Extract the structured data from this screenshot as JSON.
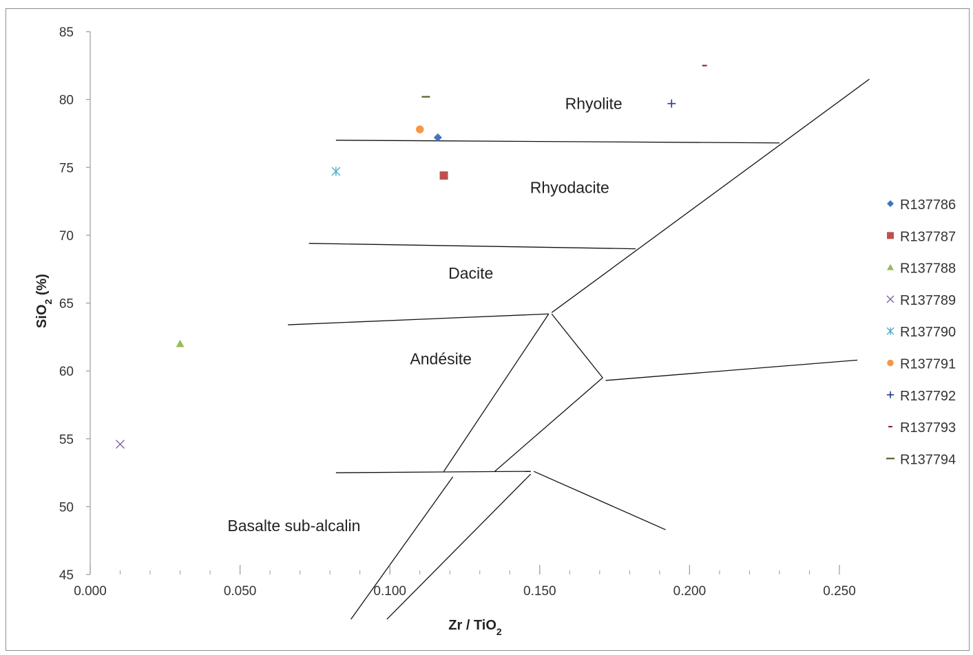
{
  "chart_data": {
    "type": "scatter",
    "xlabel": "Zr / TiO2",
    "ylabel": "SiO2 (%)",
    "xlim": [
      0.0,
      0.25
    ],
    "ylim": [
      45,
      85
    ],
    "x_ticks": [
      "0.000",
      "0.050",
      "0.100",
      "0.150",
      "0.200",
      "0.250"
    ],
    "y_ticks": [
      "45",
      "50",
      "55",
      "60",
      "65",
      "70",
      "75",
      "80",
      "85"
    ],
    "legend_position": "right",
    "series": [
      {
        "name": "R137786",
        "marker": "diamond",
        "color": "#4472c4",
        "x": 0.116,
        "y": 77.2
      },
      {
        "name": "R137787",
        "marker": "square",
        "color": "#c0504d",
        "x": 0.118,
        "y": 74.4
      },
      {
        "name": "R137788",
        "marker": "triangle",
        "color": "#9bbb59",
        "x": 0.03,
        "y": 62.0
      },
      {
        "name": "R137789",
        "marker": "x",
        "color": "#8064a2",
        "x": 0.01,
        "y": 54.6
      },
      {
        "name": "R137790",
        "marker": "star",
        "color": "#4bacc6",
        "x": 0.082,
        "y": 74.7
      },
      {
        "name": "R137791",
        "marker": "circle",
        "color": "#f79646",
        "x": 0.11,
        "y": 77.8
      },
      {
        "name": "R137792",
        "marker": "plus",
        "color": "#1f3c88",
        "x": 0.194,
        "y": 79.7
      },
      {
        "name": "R137793",
        "marker": "dash",
        "color": "#8b2f2f",
        "x": 0.205,
        "y": 82.5
      },
      {
        "name": "R137794",
        "marker": "dash",
        "color": "#4f6228",
        "x": 0.112,
        "y": 80.2
      }
    ],
    "region_labels": [
      {
        "text": "Rhyolite",
        "x": 0.168,
        "y": 79.3
      },
      {
        "text": "Rhyodacite",
        "x": 0.16,
        "y": 73.1
      },
      {
        "text": "Dacite",
        "x": 0.127,
        "y": 66.8
      },
      {
        "text": "Andésite",
        "x": 0.117,
        "y": 60.5
      },
      {
        "text": "Basalte sub-alcalin",
        "x": 0.068,
        "y": 48.2
      }
    ],
    "boundaries": [
      [
        [
          0.082,
          77.0
        ],
        [
          0.23,
          76.8
        ]
      ],
      [
        [
          0.073,
          69.4
        ],
        [
          0.182,
          69.0
        ]
      ],
      [
        [
          0.066,
          63.4
        ],
        [
          0.153,
          64.2
        ]
      ],
      [
        [
          0.154,
          64.3
        ],
        [
          0.26,
          81.5
        ]
      ],
      [
        [
          0.154,
          64.2
        ],
        [
          0.171,
          59.5
        ]
      ],
      [
        [
          0.172,
          59.3
        ],
        [
          0.256,
          60.8
        ]
      ],
      [
        [
          0.153,
          64.2
        ],
        [
          0.118,
          52.6
        ]
      ],
      [
        [
          0.171,
          59.5
        ],
        [
          0.135,
          52.6
        ]
      ],
      [
        [
          0.082,
          52.5
        ],
        [
          0.147,
          52.6
        ]
      ],
      [
        [
          0.148,
          52.6
        ],
        [
          0.192,
          48.3
        ]
      ],
      [
        [
          0.121,
          52.2
        ],
        [
          0.087,
          41.7
        ]
      ],
      [
        [
          0.147,
          52.4
        ],
        [
          0.099,
          41.7
        ]
      ]
    ]
  }
}
